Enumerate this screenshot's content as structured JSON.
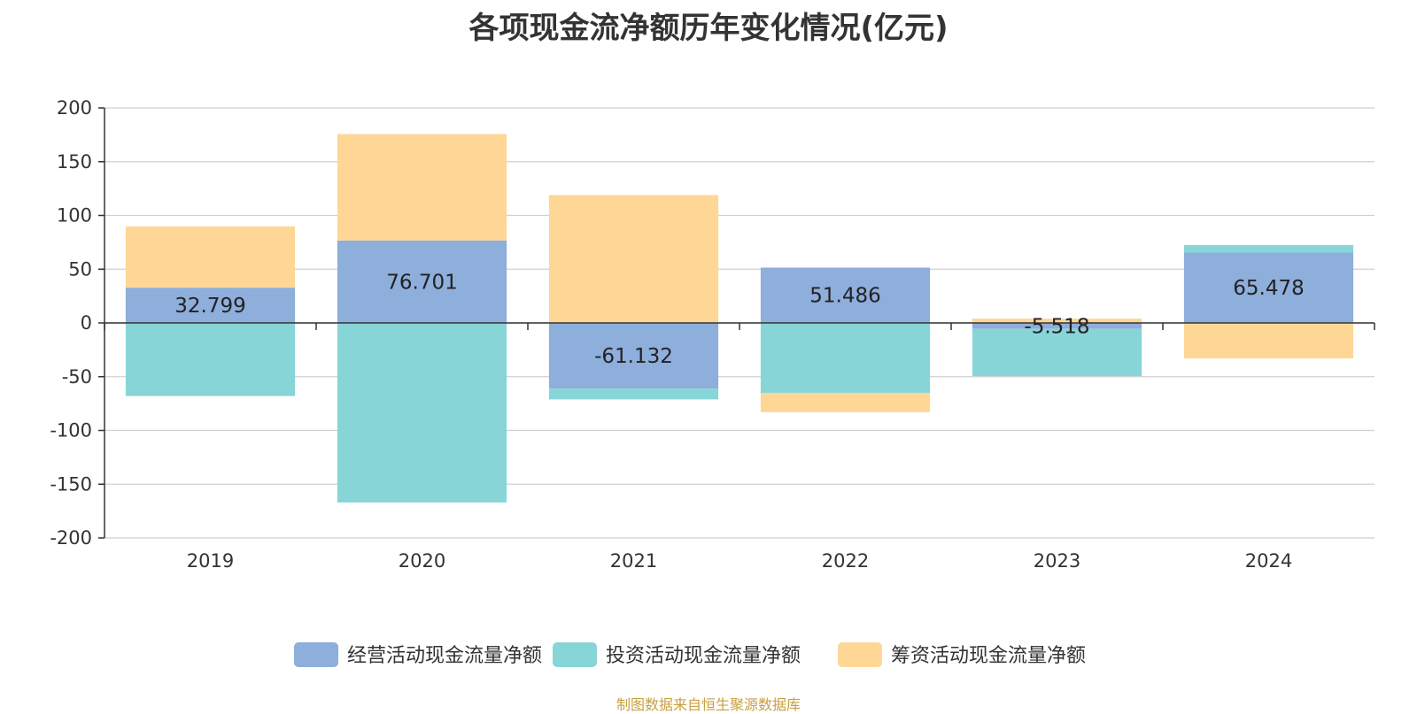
{
  "chart_data": {
    "type": "bar",
    "stacked": true,
    "title": "各项现金流净额历年变化情况(亿元)",
    "categories": [
      "2019",
      "2020",
      "2021",
      "2022",
      "2023",
      "2024"
    ],
    "series": [
      {
        "name": "经营活动现金流量净额",
        "color": "#8eaedb",
        "values": [
          32.799,
          76.701,
          -61.132,
          51.486,
          -5.518,
          65.478
        ],
        "labels": [
          "32.799",
          "76.701",
          "-61.132",
          "51.486",
          "-5.518",
          "65.478"
        ]
      },
      {
        "name": "投资活动现金流量净额",
        "color": "#88d5d8",
        "values": [
          -68,
          -167,
          -10,
          -65,
          -44,
          7
        ]
      },
      {
        "name": "筹资活动现金流量净额",
        "color": "#fed797",
        "values": [
          57,
          99,
          119,
          -18,
          4,
          -33
        ]
      }
    ],
    "yticks": [
      "200",
      "150",
      "100",
      "50",
      "0",
      "-50",
      "-100",
      "-150",
      "-200"
    ],
    "ylim": [
      -200,
      200
    ],
    "grid": true,
    "legend_position": "bottom"
  },
  "source_note": "制图数据来自恒生聚源数据库"
}
